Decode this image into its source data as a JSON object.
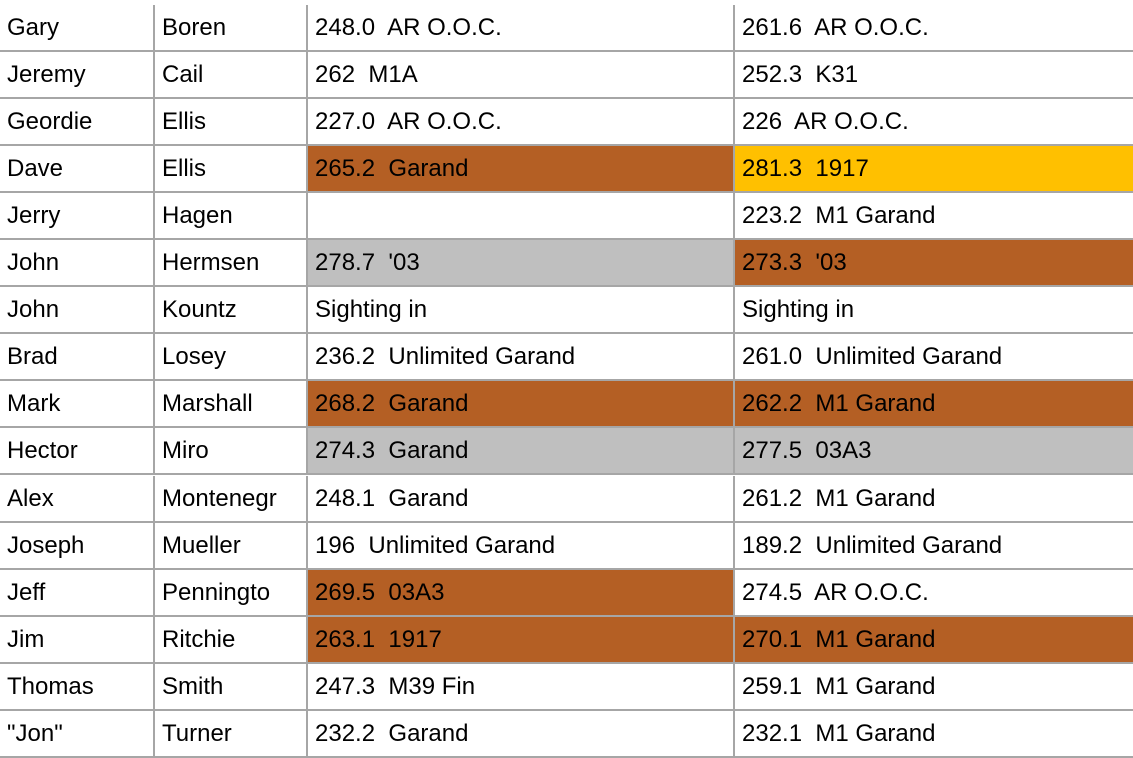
{
  "table": {
    "rows": [
      [
        "Gary",
        "Boren",
        "248.0  AR O.O.C.",
        "261.6  AR O.O.C."
      ],
      [
        "Jeremy",
        "Cail",
        "262  M1A",
        "252.3  K31"
      ],
      [
        "Geordie",
        "Ellis",
        "227.0  AR O.O.C.",
        "226  AR O.O.C."
      ],
      [
        "Dave",
        "Ellis",
        "265.2  Garand",
        "281.3  1917"
      ],
      [
        "Jerry",
        "Hagen",
        null,
        "223.2  M1 Garand"
      ],
      [
        "John",
        "Hermsen",
        "278.7  '03",
        "273.3  '03"
      ],
      [
        "John",
        "Kountz",
        "Sighting in",
        "Sighting in"
      ],
      [
        "Brad",
        "Losey",
        "236.2  Unlimited Garand",
        "261.0  Unlimited Garand"
      ],
      [
        "Mark",
        "Marshall",
        "268.2  Garand",
        "262.2  M1 Garand"
      ],
      [
        "Hector",
        "Miro",
        "274.3  Garand",
        "277.5  03A3"
      ],
      [
        "Alex",
        "Montenegr",
        "248.1  Garand",
        "261.2  M1 Garand"
      ],
      [
        "Joseph",
        "Mueller",
        "196  Unlimited Garand",
        "189.2  Unlimited Garand"
      ],
      [
        "Jeff",
        "Penningto",
        "269.5  03A3",
        "274.5  AR O.O.C."
      ],
      [
        "Jim",
        "Ritchie",
        "263.1  1917",
        "270.1  M1 Garand"
      ],
      [
        "Thomas",
        "Smith",
        "247.3  M39 Fin",
        "259.1  M1 Garand"
      ],
      [
        "\"Jon\"",
        "Turner",
        "232.2  Garand",
        "232.1  M1 Garand"
      ]
    ],
    "fills": [
      [
        null,
        null,
        null,
        null
      ],
      [
        null,
        null,
        null,
        null
      ],
      [
        null,
        null,
        null,
        null
      ],
      [
        null,
        null,
        "#b45f24",
        "#ffc000"
      ],
      [
        null,
        null,
        null,
        null
      ],
      [
        null,
        null,
        "#bfbfbf",
        "#b45f24"
      ],
      [
        null,
        null,
        null,
        null
      ],
      [
        null,
        null,
        null,
        null
      ],
      [
        null,
        null,
        "#b45f24",
        "#b45f24"
      ],
      [
        null,
        null,
        "#bfbfbf",
        "#bfbfbf"
      ],
      [
        null,
        null,
        null,
        null
      ],
      [
        null,
        null,
        null,
        null
      ],
      [
        null,
        null,
        "#b45f24",
        null
      ],
      [
        null,
        null,
        "#b45f24",
        "#b45f24"
      ],
      [
        null,
        null,
        null,
        null
      ],
      [
        null,
        null,
        null,
        null
      ]
    ]
  }
}
